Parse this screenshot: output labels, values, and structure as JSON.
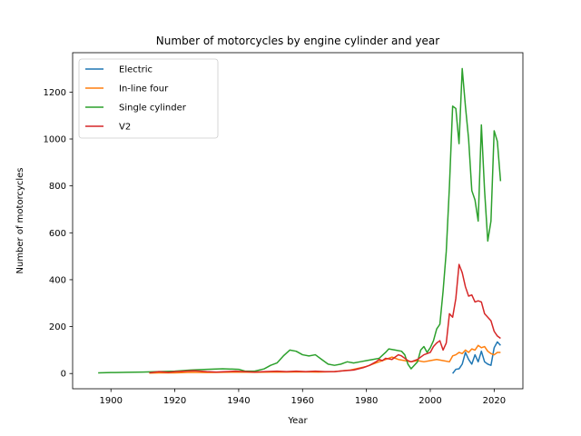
{
  "chart_data": {
    "type": "line",
    "title": "Number of motorcycles by engine cylinder and year",
    "xlabel": "Year",
    "ylabel": "Number of motorcycles",
    "xlim": [
      1888,
      2029
    ],
    "ylim": [
      -65,
      1368
    ],
    "xticks": [
      1900,
      1920,
      1940,
      1960,
      1980,
      2000,
      2020
    ],
    "yticks": [
      0,
      200,
      400,
      600,
      800,
      1000,
      1200
    ],
    "grid": false,
    "legend_position": "top-left",
    "series": [
      {
        "name": "Electric",
        "color": "#1f77b4",
        "points": [
          [
            2007,
            0
          ],
          [
            2008,
            18
          ],
          [
            2009,
            20
          ],
          [
            2010,
            40
          ],
          [
            2011,
            90
          ],
          [
            2012,
            60
          ],
          [
            2013,
            40
          ],
          [
            2014,
            80
          ],
          [
            2015,
            50
          ],
          [
            2016,
            95
          ],
          [
            2017,
            50
          ],
          [
            2018,
            40
          ],
          [
            2019,
            35
          ],
          [
            2020,
            110
          ],
          [
            2021,
            135
          ],
          [
            2022,
            120
          ]
        ]
      },
      {
        "name": "In-line four",
        "color": "#ff7f0e",
        "points": [
          [
            1912,
            2
          ],
          [
            1915,
            3
          ],
          [
            1920,
            3
          ],
          [
            1925,
            5
          ],
          [
            1930,
            4
          ],
          [
            1935,
            5
          ],
          [
            1940,
            6
          ],
          [
            1945,
            5
          ],
          [
            1950,
            6
          ],
          [
            1955,
            6
          ],
          [
            1960,
            7
          ],
          [
            1965,
            6
          ],
          [
            1970,
            8
          ],
          [
            1975,
            15
          ],
          [
            1980,
            30
          ],
          [
            1983,
            45
          ],
          [
            1985,
            55
          ],
          [
            1988,
            70
          ],
          [
            1990,
            60
          ],
          [
            1992,
            55
          ],
          [
            1994,
            50
          ],
          [
            1996,
            55
          ],
          [
            1998,
            50
          ],
          [
            2000,
            55
          ],
          [
            2002,
            60
          ],
          [
            2004,
            55
          ],
          [
            2006,
            50
          ],
          [
            2007,
            75
          ],
          [
            2008,
            80
          ],
          [
            2009,
            90
          ],
          [
            2010,
            85
          ],
          [
            2011,
            100
          ],
          [
            2012,
            90
          ],
          [
            2013,
            105
          ],
          [
            2014,
            100
          ],
          [
            2015,
            120
          ],
          [
            2016,
            110
          ],
          [
            2017,
            115
          ],
          [
            2018,
            95
          ],
          [
            2019,
            85
          ],
          [
            2020,
            80
          ],
          [
            2021,
            90
          ],
          [
            2022,
            90
          ]
        ]
      },
      {
        "name": "Single cylinder",
        "color": "#2ca02c",
        "points": [
          [
            1896,
            3
          ],
          [
            1900,
            4
          ],
          [
            1905,
            5
          ],
          [
            1910,
            6
          ],
          [
            1915,
            8
          ],
          [
            1920,
            10
          ],
          [
            1925,
            15
          ],
          [
            1930,
            18
          ],
          [
            1935,
            20
          ],
          [
            1940,
            18
          ],
          [
            1942,
            10
          ],
          [
            1945,
            10
          ],
          [
            1948,
            20
          ],
          [
            1950,
            35
          ],
          [
            1952,
            45
          ],
          [
            1954,
            75
          ],
          [
            1956,
            100
          ],
          [
            1958,
            95
          ],
          [
            1960,
            80
          ],
          [
            1962,
            75
          ],
          [
            1964,
            80
          ],
          [
            1966,
            60
          ],
          [
            1968,
            40
          ],
          [
            1970,
            35
          ],
          [
            1972,
            40
          ],
          [
            1974,
            50
          ],
          [
            1976,
            45
          ],
          [
            1978,
            50
          ],
          [
            1980,
            55
          ],
          [
            1982,
            60
          ],
          [
            1984,
            65
          ],
          [
            1986,
            90
          ],
          [
            1987,
            105
          ],
          [
            1989,
            100
          ],
          [
            1991,
            95
          ],
          [
            1992,
            80
          ],
          [
            1993,
            40
          ],
          [
            1994,
            20
          ],
          [
            1995,
            35
          ],
          [
            1996,
            50
          ],
          [
            1997,
            100
          ],
          [
            1998,
            115
          ],
          [
            1999,
            90
          ],
          [
            2000,
            110
          ],
          [
            2001,
            140
          ],
          [
            2002,
            190
          ],
          [
            2003,
            210
          ],
          [
            2004,
            350
          ],
          [
            2005,
            520
          ],
          [
            2006,
            800
          ],
          [
            2007,
            1140
          ],
          [
            2008,
            1130
          ],
          [
            2009,
            980
          ],
          [
            2010,
            1300
          ],
          [
            2011,
            1140
          ],
          [
            2012,
            1000
          ],
          [
            2013,
            780
          ],
          [
            2014,
            740
          ],
          [
            2015,
            650
          ],
          [
            2016,
            1060
          ],
          [
            2017,
            780
          ],
          [
            2018,
            565
          ],
          [
            2019,
            650
          ],
          [
            2020,
            1035
          ],
          [
            2021,
            990
          ],
          [
            2022,
            820
          ]
        ]
      },
      {
        "name": "V2",
        "color": "#d62728",
        "points": [
          [
            1912,
            3
          ],
          [
            1915,
            8
          ],
          [
            1918,
            5
          ],
          [
            1920,
            8
          ],
          [
            1923,
            10
          ],
          [
            1926,
            12
          ],
          [
            1930,
            8
          ],
          [
            1933,
            6
          ],
          [
            1936,
            8
          ],
          [
            1939,
            10
          ],
          [
            1942,
            8
          ],
          [
            1945,
            6
          ],
          [
            1948,
            8
          ],
          [
            1952,
            10
          ],
          [
            1955,
            8
          ],
          [
            1958,
            10
          ],
          [
            1961,
            8
          ],
          [
            1964,
            10
          ],
          [
            1967,
            8
          ],
          [
            1970,
            8
          ],
          [
            1973,
            12
          ],
          [
            1976,
            15
          ],
          [
            1979,
            25
          ],
          [
            1981,
            35
          ],
          [
            1983,
            50
          ],
          [
            1984,
            60
          ],
          [
            1985,
            55
          ],
          [
            1986,
            65
          ],
          [
            1988,
            60
          ],
          [
            1989,
            70
          ],
          [
            1990,
            80
          ],
          [
            1991,
            75
          ],
          [
            1992,
            65
          ],
          [
            1993,
            55
          ],
          [
            1994,
            50
          ],
          [
            1996,
            60
          ],
          [
            1998,
            80
          ],
          [
            2000,
            90
          ],
          [
            2001,
            115
          ],
          [
            2002,
            130
          ],
          [
            2003,
            140
          ],
          [
            2004,
            100
          ],
          [
            2005,
            130
          ],
          [
            2006,
            255
          ],
          [
            2007,
            240
          ],
          [
            2008,
            320
          ],
          [
            2009,
            465
          ],
          [
            2010,
            430
          ],
          [
            2011,
            370
          ],
          [
            2012,
            330
          ],
          [
            2013,
            335
          ],
          [
            2014,
            305
          ],
          [
            2015,
            310
          ],
          [
            2016,
            305
          ],
          [
            2017,
            255
          ],
          [
            2018,
            240
          ],
          [
            2019,
            225
          ],
          [
            2020,
            180
          ],
          [
            2021,
            160
          ],
          [
            2022,
            150
          ]
        ]
      }
    ]
  }
}
